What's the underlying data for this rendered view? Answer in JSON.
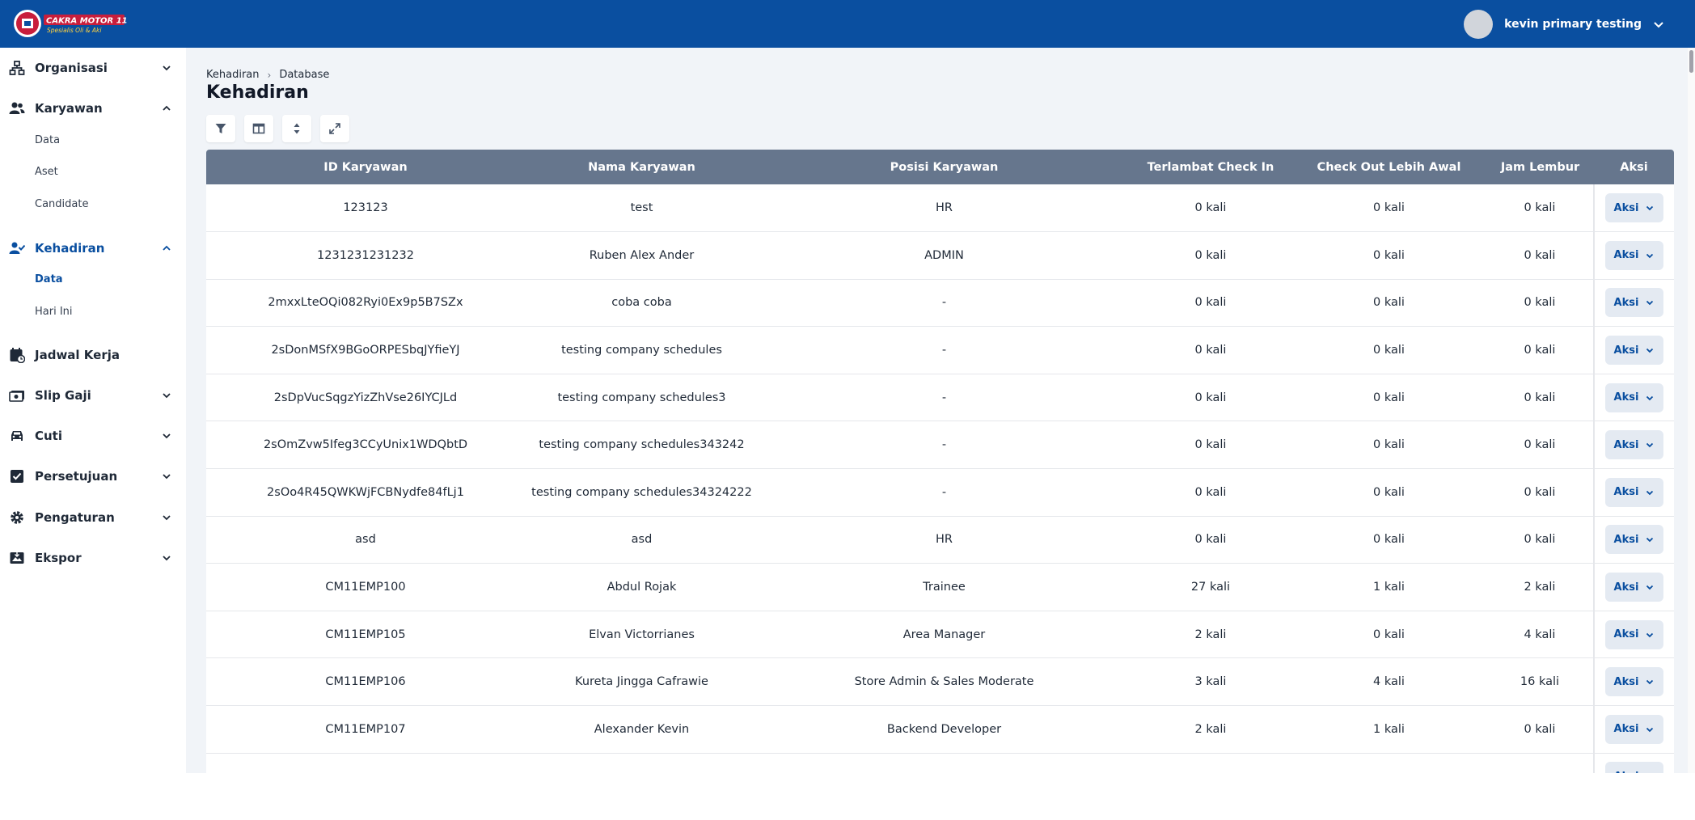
{
  "brand": {
    "logo_line1": "CAKRA MOTOR 11",
    "logo_line2": "Spesialis Oli & Aki"
  },
  "user": {
    "name": "kevin primary testing"
  },
  "colors": {
    "primary": "#0a4fa0",
    "table_header": "#66768d",
    "page_bg": "#f1f4f8",
    "aksi_bg": "#e4eaf2"
  },
  "sidebar": {
    "organisasi": {
      "label": "Organisasi",
      "icon": "org-chart-icon"
    },
    "karyawan": {
      "label": "Karyawan",
      "icon": "users-icon",
      "sub": [
        "Data",
        "Aset",
        "Candidate"
      ]
    },
    "kehadiran": {
      "label": "Kehadiran",
      "icon": "user-check-icon",
      "sub": [
        "Data",
        "Hari Ini"
      ]
    },
    "jadwal": {
      "label": "Jadwal Kerja",
      "icon": "calendar-clock-icon"
    },
    "slip": {
      "label": "Slip Gaji",
      "icon": "money-icon"
    },
    "cuti": {
      "label": "Cuti",
      "icon": "car-icon"
    },
    "persetujuan": {
      "label": "Persetujuan",
      "icon": "checkbox-icon"
    },
    "pengaturan": {
      "label": "Pengaturan",
      "icon": "gear-icon"
    },
    "ekspor": {
      "label": "Ekspor",
      "icon": "image-export-icon"
    }
  },
  "breadcrumb": {
    "item1": "Kehadiran",
    "item2": "Database"
  },
  "page_title": "Kehadiran",
  "toolbar": [
    "filter-icon",
    "columns-icon",
    "density-icon",
    "fullscreen-icon"
  ],
  "table": {
    "headers": [
      "ID Karyawan",
      "Nama Karyawan",
      "Posisi Karyawan",
      "Terlambat Check In",
      "Check Out Lebih Awal",
      "Jam Lembur",
      "Aksi"
    ],
    "action_label": "Aksi",
    "rows": [
      [
        "123123",
        "test",
        "HR",
        "0 kali",
        "0 kali",
        "0 kali"
      ],
      [
        "1231231231232",
        "Ruben Alex Ander",
        "ADMIN",
        "0 kali",
        "0 kali",
        "0 kali"
      ],
      [
        "2mxxLteOQi082Ryi0Ex9p5B7SZx",
        "coba coba",
        "-",
        "0 kali",
        "0 kali",
        "0 kali"
      ],
      [
        "2sDonMSfX9BGoORPESbqJYfieYJ",
        "testing company schedules",
        "-",
        "0 kali",
        "0 kali",
        "0 kali"
      ],
      [
        "2sDpVucSqgzYizZhVse26IYCJLd",
        "testing company schedules3",
        "-",
        "0 kali",
        "0 kali",
        "0 kali"
      ],
      [
        "2sOmZvw5Ifeg3CCyUnix1WDQbtD",
        "testing company schedules343242",
        "-",
        "0 kali",
        "0 kali",
        "0 kali"
      ],
      [
        "2sOo4R45QWKWjFCBNydfe84fLj1",
        "testing company schedules34324222",
        "-",
        "0 kali",
        "0 kali",
        "0 kali"
      ],
      [
        "asd",
        "asd",
        "HR",
        "0 kali",
        "0 kali",
        "0 kali"
      ],
      [
        "CM11EMP100",
        "Abdul Rojak",
        "Trainee",
        "27 kali",
        "1 kali",
        "2 kali"
      ],
      [
        "CM11EMP105",
        "Elvan Victorrianes",
        "Area Manager",
        "2 kali",
        "0 kali",
        "4 kali"
      ],
      [
        "CM11EMP106",
        "Kureta Jingga Cafrawie",
        "Store Admin & Sales Moderate",
        "3 kali",
        "4 kali",
        "16 kali"
      ],
      [
        "CM11EMP107",
        "Alexander Kevin",
        "Backend Developer",
        "2 kali",
        "1 kali",
        "0 kali"
      ],
      [
        "",
        "",
        "",
        "",
        "",
        ""
      ]
    ]
  }
}
